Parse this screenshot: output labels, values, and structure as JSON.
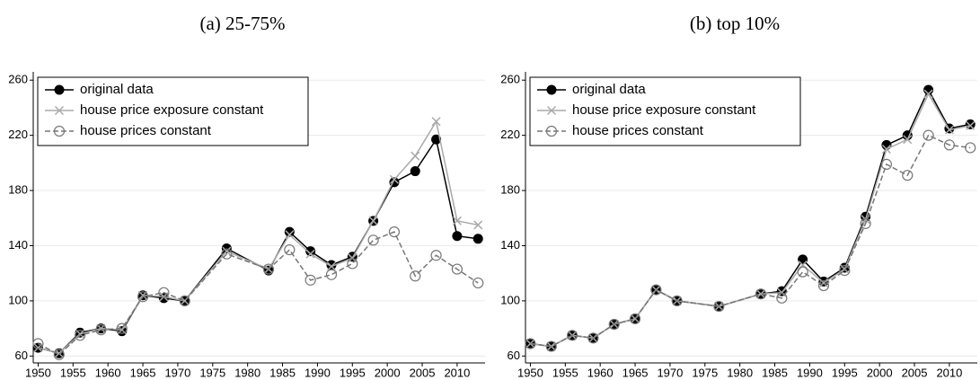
{
  "chart_data": [
    {
      "type": "line",
      "title": "(a) 25-75%",
      "x": [
        1950,
        1953,
        1956,
        1959,
        1962,
        1965,
        1968,
        1971,
        1977,
        1983,
        1986,
        1989,
        1992,
        1995,
        1998,
        2001,
        2004,
        2007,
        2010,
        2013
      ],
      "series": [
        {
          "name": "original data",
          "color": "#000000",
          "marker": "filled-circle",
          "dashed": false,
          "values": [
            66,
            62,
            77,
            80,
            78,
            104,
            102,
            100,
            138,
            122,
            150,
            136,
            126,
            132,
            158,
            186,
            194,
            217,
            147,
            145
          ]
        },
        {
          "name": "house price exposure constant",
          "color": "#aaaaaa",
          "marker": "cross",
          "dashed": false,
          "values": [
            66,
            62,
            76,
            80,
            79,
            104,
            103,
            100,
            136,
            123,
            148,
            134,
            125,
            131,
            158,
            188,
            205,
            230,
            158,
            155
          ]
        },
        {
          "name": "house prices constant",
          "color": "#777777",
          "marker": "open-circle",
          "dashed": true,
          "values": [
            69,
            61,
            75,
            79,
            80,
            103,
            106,
            100,
            134,
            123,
            137,
            115,
            119,
            127,
            144,
            150,
            118,
            133,
            123,
            113
          ]
        }
      ],
      "xlim": [
        1949.3,
        2014
      ],
      "xticks": [
        1950,
        1955,
        1960,
        1965,
        1970,
        1975,
        1980,
        1985,
        1990,
        1995,
        2000,
        2005,
        2010
      ],
      "ylim": [
        55,
        266
      ],
      "yticks": [
        60,
        100,
        140,
        180,
        220,
        260
      ],
      "grid": true,
      "legend": "top-left"
    },
    {
      "type": "line",
      "title": "(b) top 10%",
      "x": [
        1950,
        1953,
        1956,
        1959,
        1962,
        1965,
        1968,
        1971,
        1977,
        1983,
        1986,
        1989,
        1992,
        1995,
        1998,
        2001,
        2004,
        2007,
        2010,
        2013
      ],
      "series": [
        {
          "name": "original data",
          "color": "#000000",
          "marker": "filled-circle",
          "dashed": false,
          "values": [
            69,
            67,
            75,
            73,
            83,
            87,
            108,
            100,
            96,
            105,
            107,
            130,
            114,
            124,
            161,
            213,
            220,
            253,
            225,
            228
          ]
        },
        {
          "name": "house price exposure constant",
          "color": "#aaaaaa",
          "marker": "cross",
          "dashed": false,
          "values": [
            69,
            67,
            75,
            73,
            83,
            87,
            108,
            100,
            96,
            105,
            106,
            126,
            113,
            123,
            159,
            210,
            217,
            250,
            224,
            227
          ]
        },
        {
          "name": "house prices constant",
          "color": "#777777",
          "marker": "open-circle",
          "dashed": true,
          "values": [
            69,
            67,
            75,
            73,
            83,
            87,
            108,
            100,
            96,
            105,
            102,
            121,
            111,
            122,
            156,
            199,
            191,
            220,
            213,
            211
          ]
        }
      ],
      "xlim": [
        1949.3,
        2014
      ],
      "xticks": [
        1950,
        1955,
        1960,
        1965,
        1970,
        1975,
        1980,
        1985,
        1990,
        1995,
        2000,
        2005,
        2010
      ],
      "ylim": [
        55,
        266
      ],
      "yticks": [
        60,
        100,
        140,
        180,
        220,
        260
      ],
      "grid": true,
      "legend": "top-left"
    }
  ]
}
